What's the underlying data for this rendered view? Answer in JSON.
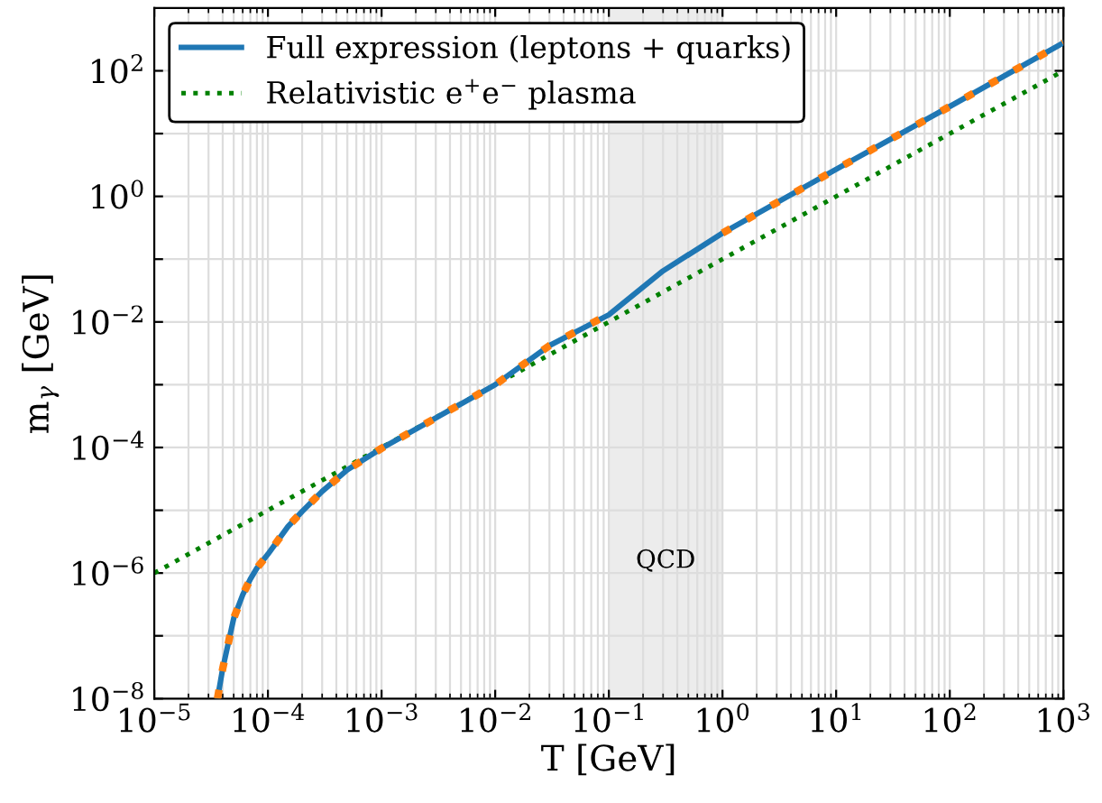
{
  "chart_data": {
    "type": "line",
    "xlabel": "T [GeV]",
    "ylabel": "m$_{γ}$ [GeV]",
    "log": "xy",
    "xlim": [
      1e-05,
      1000
    ],
    "ylim": [
      1e-08,
      1000
    ],
    "xticks": [
      {
        "value": 1e-05,
        "label": "10$^{−5}$"
      },
      {
        "value": 0.0001,
        "label": "10$^{−4}$"
      },
      {
        "value": 0.001,
        "label": "10$^{−3}$"
      },
      {
        "value": 0.01,
        "label": "10$^{−2}$"
      },
      {
        "value": 0.1,
        "label": "10$^{−1}$"
      },
      {
        "value": 1,
        "label": "10$^{0}$"
      },
      {
        "value": 10,
        "label": "10$^{1}$"
      },
      {
        "value": 100,
        "label": "10$^{2}$"
      },
      {
        "value": 1000,
        "label": "10$^{3}$"
      }
    ],
    "yticks": [
      {
        "value": 1e-08,
        "label": "10$^{−8}$"
      },
      {
        "value": 1e-07,
        "label": null
      },
      {
        "value": 1e-06,
        "label": "10$^{−6}$"
      },
      {
        "value": 1e-05,
        "label": null
      },
      {
        "value": 0.0001,
        "label": "10$^{−4}$"
      },
      {
        "value": 0.001,
        "label": null
      },
      {
        "value": 0.01,
        "label": "10$^{−2}$"
      },
      {
        "value": 0.1,
        "label": null
      },
      {
        "value": 1,
        "label": "10$^{0}$"
      },
      {
        "value": 10,
        "label": null
      },
      {
        "value": 100,
        "label": "10$^{2}$"
      }
    ],
    "grid": true,
    "legend": "top left",
    "bands": [
      {
        "axis": "x",
        "from": 0.1,
        "to": 1,
        "label": "QCD",
        "color": "#ececec"
      }
    ],
    "series": [
      {
        "color": "#ff7f0e",
        "line_style": "dashed",
        "x": [
          3.6e-05,
          4e-05,
          5e-05,
          6e-05,
          7e-05,
          8e-05,
          0.0001,
          0.00015,
          0.0002,
          0.0003,
          0.0005,
          0.001,
          0.01,
          0.03,
          0.09,
          0.3,
          1,
          10,
          100,
          1000
        ],
        "values": [
          1e-08,
          3e-08,
          1.9e-07,
          4.5e-07,
          8e-07,
          1.2e-06,
          2e-06,
          5.5e-06,
          9.6e-06,
          2e-05,
          4.4e-05,
          9.7e-05,
          0.001,
          0.0042,
          0.012,
          null,
          0.26,
          2.7,
          27,
          280
        ]
      },
      {
        "name": "Full expression (leptons + quarks)",
        "color": "#1f77b4",
        "line_style": "solid",
        "x": [
          3.6e-05,
          4e-05,
          5e-05,
          6e-05,
          7e-05,
          8e-05,
          0.0001,
          0.00015,
          0.0002,
          0.0003,
          0.0005,
          0.001,
          0.01,
          0.03,
          0.1,
          0.3,
          1,
          10,
          100,
          1000
        ],
        "values": [
          1e-08,
          3e-08,
          1.9e-07,
          4.5e-07,
          8e-07,
          1.2e-06,
          2e-06,
          5.5e-06,
          9.6e-06,
          2e-05,
          4.4e-05,
          9.7e-05,
          0.001,
          0.0042,
          0.013,
          0.065,
          0.26,
          2.7,
          27,
          280
        ]
      },
      {
        "name": "Relativistic e$^{+}$e$^{−}$ plasma",
        "color": "#008000",
        "line_style": "dotted",
        "x": [
          1e-05,
          1000
        ],
        "values": [
          1e-06,
          100
        ]
      }
    ]
  }
}
